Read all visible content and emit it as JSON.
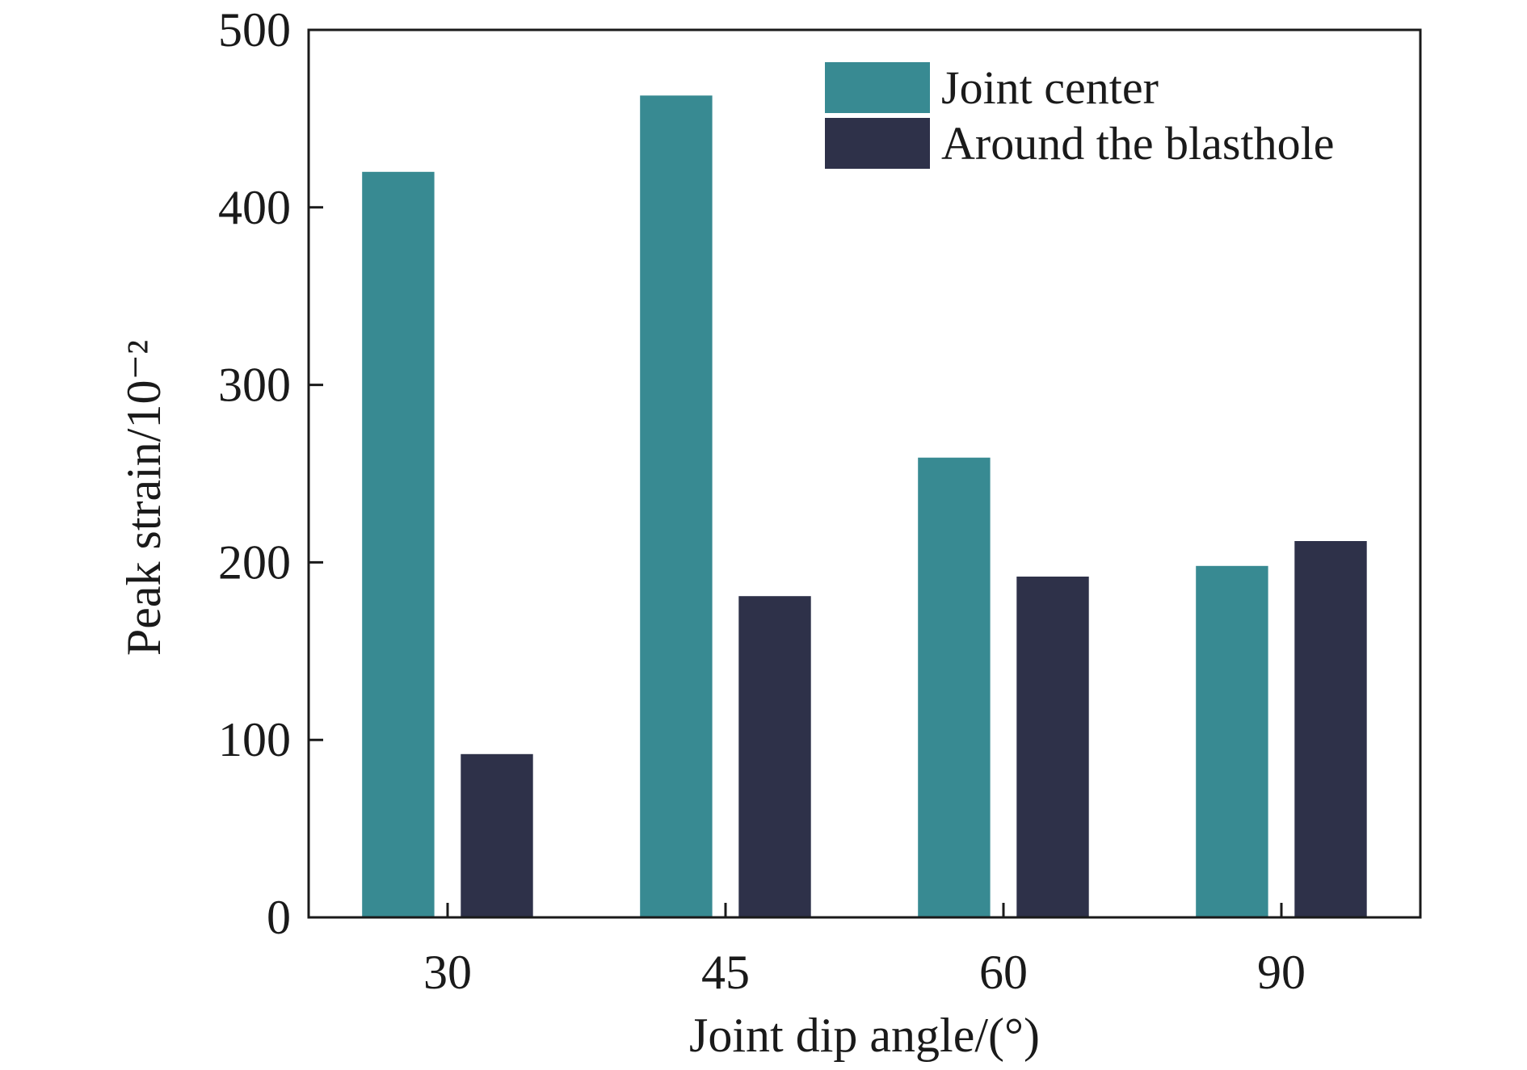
{
  "chart_data": {
    "type": "bar",
    "categories": [
      "30",
      "45",
      "60",
      "90"
    ],
    "series": [
      {
        "name": "Joint center",
        "values": [
          420,
          463,
          259,
          198
        ],
        "color": "#388a92"
      },
      {
        "name": "Around the blasthole",
        "values": [
          92,
          181,
          192,
          212
        ],
        "color": "#2e3149"
      }
    ],
    "xlabel": "Joint dip angle/(°)",
    "ylabel": "Peak strain/10⁻²",
    "ylim": [
      0,
      500
    ],
    "yticks": [
      0,
      100,
      200,
      300,
      400,
      500
    ],
    "grid": false,
    "legend_position": "top-right"
  }
}
